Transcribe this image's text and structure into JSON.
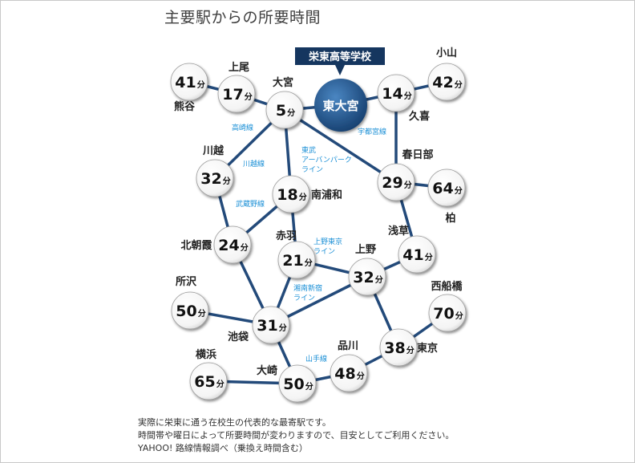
{
  "title": "主要駅からの所要時間",
  "unit": "分",
  "school": {
    "banner": "栄東高等学校",
    "hub": "東大宮"
  },
  "stations": {
    "kumagaya": {
      "label": "熊谷",
      "time": "41"
    },
    "ageo": {
      "label": "上尾",
      "time": "17"
    },
    "omiya": {
      "label": "大宮",
      "time": "5"
    },
    "oyama": {
      "label": "小山",
      "time": "42"
    },
    "kuki": {
      "label": "久喜",
      "time": "14"
    },
    "kawagoe": {
      "label": "川越",
      "time": "32"
    },
    "minamiurawa": {
      "label": "南浦和",
      "time": "18"
    },
    "kasukabe": {
      "label": "春日部",
      "time": "29"
    },
    "kashiwa": {
      "label": "柏",
      "time": "64"
    },
    "kitaasaka": {
      "label": "北朝霞",
      "time": "24"
    },
    "akabane": {
      "label": "赤羽",
      "time": "21"
    },
    "asakusa": {
      "label": "浅草",
      "time": "41"
    },
    "ueno": {
      "label": "上野",
      "time": "32"
    },
    "tokorozawa": {
      "label": "所沢",
      "time": "50"
    },
    "nishifunabashi": {
      "label": "西船橋",
      "time": "70"
    },
    "ikebukuro": {
      "label": "池袋",
      "time": "31"
    },
    "tokyo": {
      "label": "東京",
      "time": "38"
    },
    "shinagawa": {
      "label": "品川",
      "time": "48"
    },
    "yokohama": {
      "label": "横浜",
      "time": "65"
    },
    "osaki": {
      "label": "大崎",
      "time": "50"
    }
  },
  "lines": {
    "takasaki": "高崎線",
    "kawagoe": "川越線",
    "utsunomiya": "宇都宮線",
    "tobu_l1": "東武",
    "tobu_l2": "アーバンパーク",
    "tobu_l3": "ライン",
    "musashino": "武蔵野線",
    "uenotokyo_l1": "上野東京",
    "uenotokyo_l2": "ライン",
    "shonan_l1": "湘南新宿",
    "shonan_l2": "ライン",
    "yamanote": "山手線"
  },
  "notes": [
    "実際に栄東に通う在校生の代表的な最寄駅です。",
    "時間帯や曜日によって所要時間が変わりますので、目安としてご利用ください。",
    "YAHOO! 路線情報調べ（乗換え時間含む）"
  ]
}
